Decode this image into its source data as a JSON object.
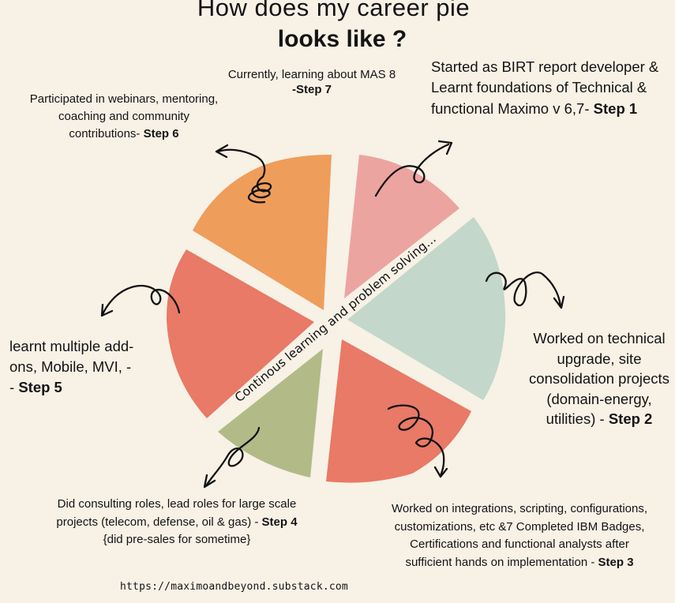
{
  "title": {
    "line1": "How does my career pie",
    "line2": "looks like ?"
  },
  "center_text": "Continous learning and problem solving...",
  "slice_colors": {
    "step1": "#eca4a1",
    "step2": "#c3d7cb",
    "step3": "#e87a67",
    "step4": "#b2bb88",
    "step5": "#e87a67",
    "step6": "#ef9d5b"
  },
  "steps": {
    "step1": {
      "text": "Started as BIRT report developer & Learnt foundations of Technical & functional Maximo v 6,7-",
      "label": "Step 1"
    },
    "step2": {
      "text": "Worked on technical upgrade, site consolidation projects (domain-energy, utilities) -",
      "label": "Step 2"
    },
    "step3": {
      "text": "Worked on integrations, scripting, configurations, customizations, etc  &7 Completed IBM Badges, Certifications and functional analysts after sufficient hands on implementation -",
      "label": "Step 3"
    },
    "step4": {
      "label": "Step 4",
      "text_before": "Did consulting roles, lead roles for large scale projects (telecom, defense, oil & gas) -",
      "text_after": "{did pre-sales for sometime}"
    },
    "step5": {
      "text": "learnt multiple add-ons, Mobile, MVI, --",
      "label": "Step 5"
    },
    "step6": {
      "text": "Participated in webinars, mentoring, coaching and community contributions-",
      "label": "Step 6"
    },
    "step7": {
      "text": "Currently, learning about MAS 8",
      "label": "-Step 7"
    }
  },
  "footer_url": "https://maximoandbeyond.substack.com"
}
